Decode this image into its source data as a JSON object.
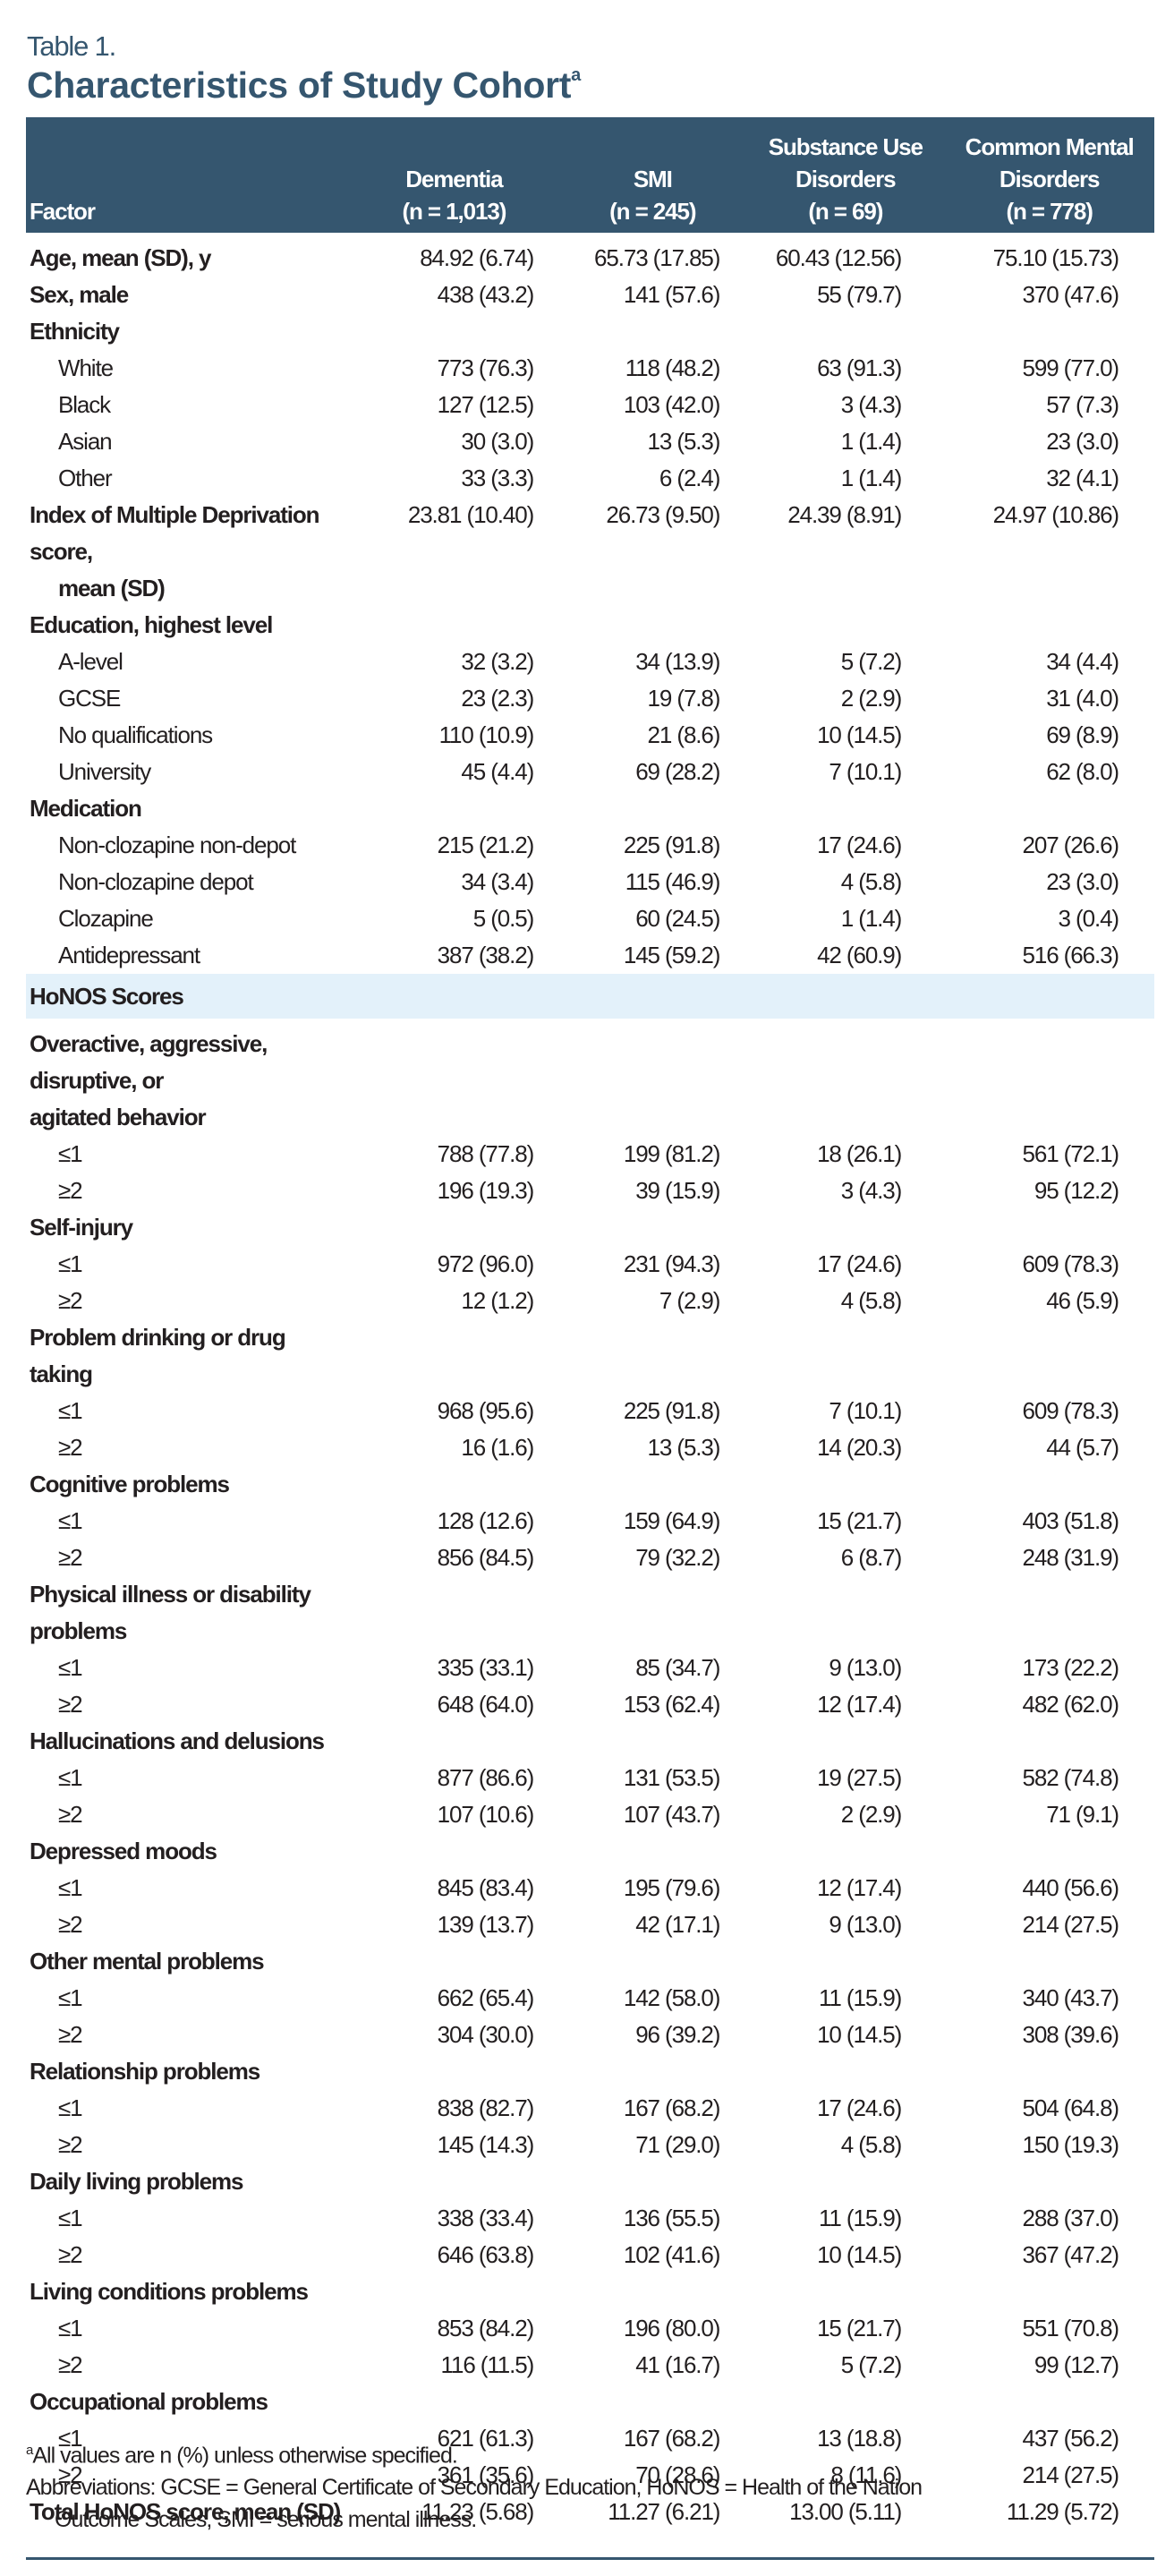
{
  "table_label": "Table 1.",
  "title": "Characteristics of Study Cohort",
  "title_footnote_mark": "a",
  "colors": {
    "header_bg": "#35566f",
    "band_bg": "#e3f1fa",
    "title": "#35566f"
  },
  "columns": {
    "factor": "Factor",
    "c1": {
      "line1": "",
      "line2": "Dementia",
      "line3": "(n = 1,013)"
    },
    "c2": {
      "line1": "",
      "line2": "SMI",
      "line3": "(n = 245)"
    },
    "c3": {
      "line1": "Substance Use",
      "line2": "Disorders",
      "line3": "(n = 69)"
    },
    "c4": {
      "line1": "Common Mental",
      "line2": "Disorders",
      "line3": "(n = 778)"
    }
  },
  "rows": [
    {
      "label": "Age, mean (SD), y",
      "values": [
        "84.92 (6.74)",
        "65.73 (17.85)",
        "60.43 (12.56)",
        "75.10 (15.73)"
      ]
    },
    {
      "label": "Sex, male",
      "values": [
        "438 (43.2)",
        "141 (57.6)",
        "55 (79.7)",
        "370 (47.6)"
      ]
    },
    {
      "label": "Ethnicity",
      "values": [
        "",
        "",
        "",
        ""
      ]
    },
    {
      "label": "White",
      "values": [
        "773 (76.3)",
        "118 (48.2)",
        "63 (91.3)",
        "599 (77.0)"
      ]
    },
    {
      "label": "Black",
      "values": [
        "127 (12.5)",
        "103 (42.0)",
        "3 (4.3)",
        "57 (7.3)"
      ]
    },
    {
      "label": "Asian",
      "values": [
        "30 (3.0)",
        "13 (5.3)",
        "1 (1.4)",
        "23 (3.0)"
      ]
    },
    {
      "label": "Other",
      "values": [
        "33 (3.3)",
        "6 (2.4)",
        "1 (1.4)",
        "32 (4.1)"
      ]
    },
    {
      "label": "Index of Multiple Deprivation score,",
      "label2": "mean (SD)",
      "values": [
        "23.81 (10.40)",
        "26.73 (9.50)",
        "24.39 (8.91)",
        "24.97 (10.86)"
      ]
    },
    {
      "label": "Education, highest level",
      "values": [
        "",
        "",
        "",
        ""
      ]
    },
    {
      "label": "A-level",
      "values": [
        "32 (3.2)",
        "34 (13.9)",
        "5 (7.2)",
        "34 (4.4)"
      ]
    },
    {
      "label": "GCSE",
      "values": [
        "23 (2.3)",
        "19 (7.8)",
        "2 (2.9)",
        "31 (4.0)"
      ]
    },
    {
      "label": "No qualifications",
      "values": [
        "110 (10.9)",
        "21 (8.6)",
        "10 (14.5)",
        "69 (8.9)"
      ]
    },
    {
      "label": "University",
      "values": [
        "45 (4.4)",
        "69 (28.2)",
        "7 (10.1)",
        "62 (8.0)"
      ]
    },
    {
      "label": "Medication",
      "values": [
        "",
        "",
        "",
        ""
      ]
    },
    {
      "label": "Non-clozapine non-depot",
      "values": [
        "215 (21.2)",
        "225 (91.8)",
        "17 (24.6)",
        "207 (26.6)"
      ]
    },
    {
      "label": "Non-clozapine depot",
      "values": [
        "34 (3.4)",
        "115 (46.9)",
        "4 (5.8)",
        "23 (3.0)"
      ]
    },
    {
      "label": "Clozapine",
      "values": [
        "5 (0.5)",
        "60 (24.5)",
        "1 (1.4)",
        "3 (0.4)"
      ]
    },
    {
      "label": "Antidepressant",
      "values": [
        "387 (38.2)",
        "145 (59.2)",
        "42 (60.9)",
        "516 (66.3)"
      ]
    },
    {
      "label": "HoNOS Scores"
    },
    {
      "label": "Overactive, aggressive, disruptive, or",
      "label2": "agitated behavior",
      "values": [
        "",
        "",
        "",
        ""
      ]
    },
    {
      "label": "≤1",
      "values": [
        "788 (77.8)",
        "199 (81.2)",
        "18 (26.1)",
        "561 (72.1)"
      ]
    },
    {
      "label": "≥2",
      "values": [
        "196 (19.3)",
        "39 (15.9)",
        "3 (4.3)",
        "95 (12.2)"
      ]
    },
    {
      "label": "Self-injury",
      "values": [
        "",
        "",
        "",
        ""
      ]
    },
    {
      "label": "≤1",
      "values": [
        "972 (96.0)",
        "231 (94.3)",
        "17 (24.6)",
        "609 (78.3)"
      ]
    },
    {
      "label": "≥2",
      "values": [
        "12 (1.2)",
        "7 (2.9)",
        "4 (5.8)",
        "46 (5.9)"
      ]
    },
    {
      "label": "Problem drinking or drug taking",
      "values": [
        "",
        "",
        "",
        ""
      ]
    },
    {
      "label": "≤1",
      "values": [
        "968 (95.6)",
        "225 (91.8)",
        "7 (10.1)",
        "609 (78.3)"
      ]
    },
    {
      "label": "≥2",
      "values": [
        "16 (1.6)",
        "13 (5.3)",
        "14 (20.3)",
        "44 (5.7)"
      ]
    },
    {
      "label": "Cognitive problems",
      "values": [
        "",
        "",
        "",
        ""
      ]
    },
    {
      "label": "≤1",
      "values": [
        "128 (12.6)",
        "159 (64.9)",
        "15 (21.7)",
        "403 (51.8)"
      ]
    },
    {
      "label": "≥2",
      "values": [
        "856 (84.5)",
        "79 (32.2)",
        "6 (8.7)",
        "248 (31.9)"
      ]
    },
    {
      "label": "Physical illness or disability problems",
      "values": [
        "",
        "",
        "",
        ""
      ]
    },
    {
      "label": "≤1",
      "values": [
        "335 (33.1)",
        "85 (34.7)",
        "9 (13.0)",
        "173 (22.2)"
      ]
    },
    {
      "label": "≥2",
      "values": [
        "648 (64.0)",
        "153 (62.4)",
        "12 (17.4)",
        "482 (62.0)"
      ]
    },
    {
      "label": "Hallucinations and delusions",
      "values": [
        "",
        "",
        "",
        ""
      ]
    },
    {
      "label": "≤1",
      "values": [
        "877 (86.6)",
        "131 (53.5)",
        "19 (27.5)",
        "582 (74.8)"
      ]
    },
    {
      "label": "≥2",
      "values": [
        "107 (10.6)",
        "107 (43.7)",
        "2 (2.9)",
        "71 (9.1)"
      ]
    },
    {
      "label": "Depressed moods",
      "values": [
        "",
        "",
        "",
        ""
      ]
    },
    {
      "label": "≤1",
      "values": [
        "845 (83.4)",
        "195 (79.6)",
        "12 (17.4)",
        "440 (56.6)"
      ]
    },
    {
      "label": "≥2",
      "values": [
        "139 (13.7)",
        "42 (17.1)",
        "9 (13.0)",
        "214 (27.5)"
      ]
    },
    {
      "label": "Other mental problems",
      "values": [
        "",
        "",
        "",
        ""
      ]
    },
    {
      "label": "≤1",
      "values": [
        "662 (65.4)",
        "142 (58.0)",
        "11 (15.9)",
        "340 (43.7)"
      ]
    },
    {
      "label": "≥2",
      "values": [
        "304 (30.0)",
        "96 (39.2)",
        "10 (14.5)",
        "308 (39.6)"
      ]
    },
    {
      "label": "Relationship problems",
      "values": [
        "",
        "",
        "",
        ""
      ]
    },
    {
      "label": "≤1",
      "values": [
        "838 (82.7)",
        "167 (68.2)",
        "17 (24.6)",
        "504 (64.8)"
      ]
    },
    {
      "label": "≥2",
      "values": [
        "145 (14.3)",
        "71 (29.0)",
        "4 (5.8)",
        "150 (19.3)"
      ]
    },
    {
      "label": "Daily living problems",
      "values": [
        "",
        "",
        "",
        ""
      ]
    },
    {
      "label": "≤1",
      "values": [
        "338 (33.4)",
        "136 (55.5)",
        "11 (15.9)",
        "288 (37.0)"
      ]
    },
    {
      "label": "≥2",
      "values": [
        "646 (63.8)",
        "102 (41.6)",
        "10 (14.5)",
        "367 (47.2)"
      ]
    },
    {
      "label": "Living conditions problems",
      "values": [
        "",
        "",
        "",
        ""
      ]
    },
    {
      "label": "≤1",
      "values": [
        "853 (84.2)",
        "196 (80.0)",
        "15 (21.7)",
        "551 (70.8)"
      ]
    },
    {
      "label": "≥2",
      "values": [
        "116 (11.5)",
        "41 (16.7)",
        "5 (7.2)",
        "99 (12.7)"
      ]
    },
    {
      "label": "Occupational problems",
      "values": [
        "",
        "",
        "",
        ""
      ]
    },
    {
      "label": "≤1",
      "values": [
        "621 (61.3)",
        "167 (68.2)",
        "13 (18.8)",
        "437 (56.2)"
      ]
    },
    {
      "label": "≥2",
      "values": [
        "361 (35.6)",
        "70 (28.6)",
        "8 (11.6)",
        "214 (27.5)"
      ]
    },
    {
      "label": "Total HoNOS score, mean (SD)",
      "values": [
        "11.23 (5.68)",
        "11.27 (6.21)",
        "13.00 (5.11)",
        "11.29 (5.72)"
      ]
    }
  ],
  "footnotes": {
    "a_mark": "a",
    "a_text": "All values are n (%) unless otherwise specified.",
    "abbrev_line1": "Abbreviations: GCSE = General Certificate of Secondary Education, HoNOS = Health of the Nation",
    "abbrev_line2": "Outcome Scales, SMI = serious mental illness."
  }
}
